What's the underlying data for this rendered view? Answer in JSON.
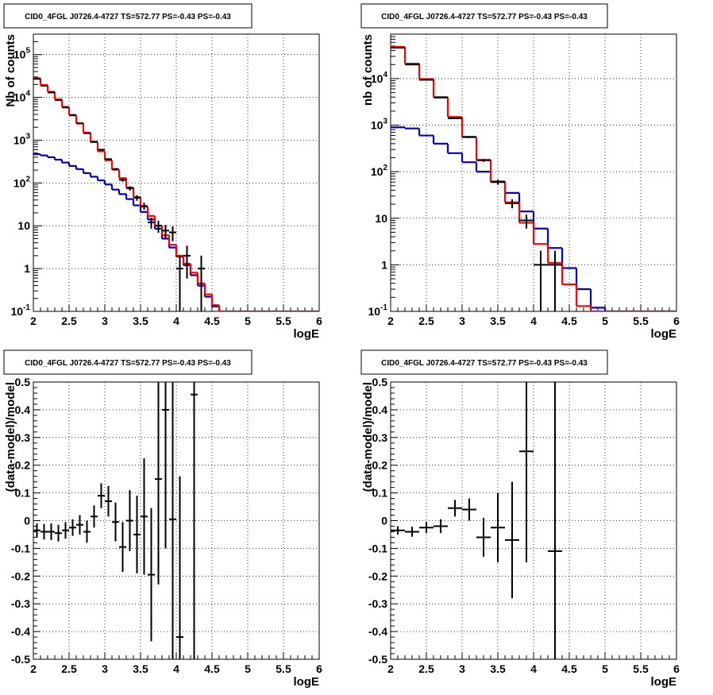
{
  "colors": {
    "data": "#000000",
    "total_model": "#ff0000",
    "component": "#0000cc",
    "grid": "#000000",
    "background": "#ffffff"
  },
  "chart_data": [
    {
      "id": "counts_fine",
      "type": "line",
      "title": "CID0_4FGL J0726.4-4727 TS=572.77 PS=-0.43 PS=-0.43",
      "xlabel": "logE",
      "ylabel": "Nb of counts",
      "xlim": [
        2,
        6
      ],
      "ylim": [
        0.1,
        300000
      ],
      "log_y": true,
      "grid": true,
      "x_ticks": [
        "2",
        "2.5",
        "3",
        "3.5",
        "4",
        "4.5",
        "5",
        "5.5",
        "6"
      ],
      "y_ticks": [
        "10^-1",
        "1",
        "10",
        "10^2",
        "10^3",
        "10^4",
        "10^5"
      ],
      "bin_width": 0.1,
      "bin_low_edges": [
        2.0,
        2.1,
        2.2,
        2.3,
        2.4,
        2.5,
        2.6,
        2.7,
        2.8,
        2.9,
        3.0,
        3.1,
        3.2,
        3.3,
        3.4,
        3.5,
        3.6,
        3.7,
        3.8,
        3.9,
        4.0,
        4.1,
        4.2,
        4.3,
        4.4,
        4.5,
        4.6,
        4.7,
        4.8,
        4.9,
        5.0,
        5.1,
        5.2,
        5.3,
        5.4,
        5.5,
        5.6,
        5.7,
        5.8,
        5.9
      ],
      "series": [
        {
          "role": "total_model",
          "style": "histogram",
          "values": [
            28000,
            19500,
            13500,
            9000,
            6000,
            3900,
            2500,
            1500,
            900,
            550,
            340,
            205,
            130,
            78,
            47,
            28,
            17,
            10,
            6,
            3.6,
            2.0,
            1.3,
            0.8,
            0.45,
            0.25,
            0.14,
            0.1,
            0.1,
            0.1,
            0.1,
            0.1,
            0.1,
            0.1,
            0.1,
            0.1,
            0.1,
            0.1,
            0.1,
            0.1,
            0.1
          ]
        },
        {
          "role": "component",
          "style": "histogram",
          "values": [
            470,
            440,
            400,
            350,
            300,
            250,
            210,
            170,
            140,
            115,
            92,
            70,
            55,
            42,
            30,
            21,
            14,
            8.5,
            5,
            3.1,
            1.9,
            1.2,
            0.7,
            0.4,
            0.22,
            0.13,
            0.1,
            0.1,
            0.1,
            0.1,
            0.1,
            0.1,
            0.1,
            0.1,
            0.1,
            0.1,
            0.1,
            0.1,
            0.1,
            0.1
          ]
        },
        {
          "role": "data",
          "style": "errorbars",
          "values": [
            27000,
            18700,
            13000,
            8600,
            5800,
            3800,
            2450,
            1450,
            920,
            600,
            360,
            210,
            118,
            75,
            45,
            29,
            12,
            10,
            7.7,
            7.0,
            1.0,
            2.0,
            0,
            1.0,
            0,
            0,
            0,
            0,
            0,
            0,
            0,
            0,
            0,
            0,
            0,
            0,
            0,
            0,
            0,
            0
          ]
        }
      ]
    },
    {
      "id": "counts_coarse",
      "type": "line",
      "title": "CID0_4FGL J0726.4-4727 TS=572.77 PS=-0.43 PS=-0.43",
      "xlabel": "logE",
      "ylabel": "nb of counts",
      "xlim": [
        2,
        6
      ],
      "ylim": [
        0.1,
        90000
      ],
      "log_y": true,
      "grid": true,
      "x_ticks": [
        "2",
        "2.5",
        "3",
        "3.5",
        "4",
        "4.5",
        "5",
        "5.5",
        "6"
      ],
      "y_ticks": [
        "10^-1",
        "1",
        "10",
        "10^2",
        "10^3",
        "10^4"
      ],
      "bin_width": 0.2,
      "bin_low_edges": [
        2.0,
        2.2,
        2.4,
        2.6,
        2.8,
        3.0,
        3.2,
        3.4,
        3.6,
        3.8,
        4.0,
        4.2,
        4.4,
        4.6,
        4.8,
        5.0,
        5.2,
        5.4,
        5.6,
        5.8
      ],
      "series": [
        {
          "role": "total_model",
          "style": "histogram",
          "values": [
            48000,
            21000,
            9800,
            4000,
            1500,
            550,
            180,
            62,
            22,
            8,
            2.8,
            1.1,
            0.38,
            0.13,
            0.1,
            0.1,
            0.1,
            0.1,
            0.1,
            0.1
          ]
        },
        {
          "role": "component",
          "style": "histogram",
          "values": [
            900,
            850,
            600,
            400,
            250,
            160,
            100,
            60,
            35,
            14,
            6,
            2.3,
            0.85,
            0.3,
            0.12,
            0.1,
            0.1,
            0.1,
            0.1,
            0.1
          ]
        },
        {
          "role": "data",
          "style": "errorbars",
          "values": [
            46000,
            20000,
            9400,
            3900,
            1400,
            560,
            175,
            60,
            21,
            9,
            1.0,
            1.0,
            0,
            0,
            0,
            0,
            0,
            0,
            0,
            0
          ]
        }
      ]
    },
    {
      "id": "residuals_fine",
      "type": "scatter",
      "title": "CID0_4FGL J0726.4-4727 TS=572.77 PS=-0.43 PS=-0.43",
      "xlabel": "logE",
      "ylabel": "(data-model)/model",
      "xlim": [
        2,
        6
      ],
      "ylim": [
        -0.5,
        0.5
      ],
      "log_y": false,
      "grid": true,
      "x_ticks": [
        "2",
        "2.5",
        "3",
        "3.5",
        "4",
        "4.5",
        "5",
        "5.5",
        "6"
      ],
      "y_ticks": [
        "-0.5",
        "-0.4",
        "-0.3",
        "-0.2",
        "-0.1",
        "0",
        "0.1",
        "0.2",
        "0.3",
        "0.4",
        "0.5"
      ],
      "bin_width": 0.1,
      "points": [
        {
          "x": 2.05,
          "y": -0.035,
          "err": 0.025
        },
        {
          "x": 2.15,
          "y": -0.04,
          "err": 0.028
        },
        {
          "x": 2.25,
          "y": -0.04,
          "err": 0.03
        },
        {
          "x": 2.35,
          "y": -0.045,
          "err": 0.03
        },
        {
          "x": 2.45,
          "y": -0.035,
          "err": 0.03
        },
        {
          "x": 2.55,
          "y": -0.025,
          "err": 0.03
        },
        {
          "x": 2.65,
          "y": -0.015,
          "err": 0.035
        },
        {
          "x": 2.75,
          "y": -0.04,
          "err": 0.04
        },
        {
          "x": 2.85,
          "y": 0.015,
          "err": 0.04
        },
        {
          "x": 2.95,
          "y": 0.09,
          "err": 0.045
        },
        {
          "x": 3.05,
          "y": 0.07,
          "err": 0.055
        },
        {
          "x": 3.15,
          "y": -0.005,
          "err": 0.07
        },
        {
          "x": 3.25,
          "y": -0.095,
          "err": 0.09
        },
        {
          "x": 3.35,
          "y": 0.0,
          "err": 0.11
        },
        {
          "x": 3.45,
          "y": -0.05,
          "err": 0.14
        },
        {
          "x": 3.55,
          "y": 0.015,
          "err": 0.21
        },
        {
          "x": 3.65,
          "y": -0.195,
          "err": 0.24
        },
        {
          "x": 3.75,
          "y": 0.15,
          "err": 0.38
        },
        {
          "x": 3.85,
          "y": 0.4,
          "err": 0.5
        },
        {
          "x": 3.95,
          "y": 0.005,
          "err": 0.8
        },
        {
          "x": 4.05,
          "y": -0.42,
          "err": 0.58
        },
        {
          "x": 4.25,
          "y": 0.455,
          "err": 1.2
        }
      ]
    },
    {
      "id": "residuals_coarse",
      "type": "scatter",
      "title": "CID0_4FGL J0726.4-4727 TS=572.77 PS=-0.43 PS=-0.43",
      "xlabel": "logE",
      "ylabel": "(data-model)/model",
      "xlim": [
        2,
        6
      ],
      "ylim": [
        -0.5,
        0.5
      ],
      "log_y": false,
      "grid": true,
      "x_ticks": [
        "2",
        "2.5",
        "3",
        "3.5",
        "4",
        "4.5",
        "5",
        "5.5",
        "6"
      ],
      "y_ticks": [
        "-0.5",
        "-0.4",
        "-0.3",
        "-0.2",
        "-0.1",
        "0",
        "0.1",
        "0.2",
        "0.3",
        "0.4",
        "0.5"
      ],
      "bin_width": 0.2,
      "points": [
        {
          "x": 2.1,
          "y": -0.035,
          "err": 0.015
        },
        {
          "x": 2.3,
          "y": -0.04,
          "err": 0.018
        },
        {
          "x": 2.5,
          "y": -0.025,
          "err": 0.02
        },
        {
          "x": 2.7,
          "y": -0.02,
          "err": 0.025
        },
        {
          "x": 2.9,
          "y": 0.045,
          "err": 0.03
        },
        {
          "x": 3.1,
          "y": 0.04,
          "err": 0.04
        },
        {
          "x": 3.3,
          "y": -0.06,
          "err": 0.07
        },
        {
          "x": 3.5,
          "y": -0.025,
          "err": 0.125
        },
        {
          "x": 3.7,
          "y": -0.07,
          "err": 0.21
        },
        {
          "x": 3.9,
          "y": 0.25,
          "err": 0.4
        },
        {
          "x": 4.3,
          "y": -0.11,
          "err": 0.9
        }
      ]
    }
  ]
}
